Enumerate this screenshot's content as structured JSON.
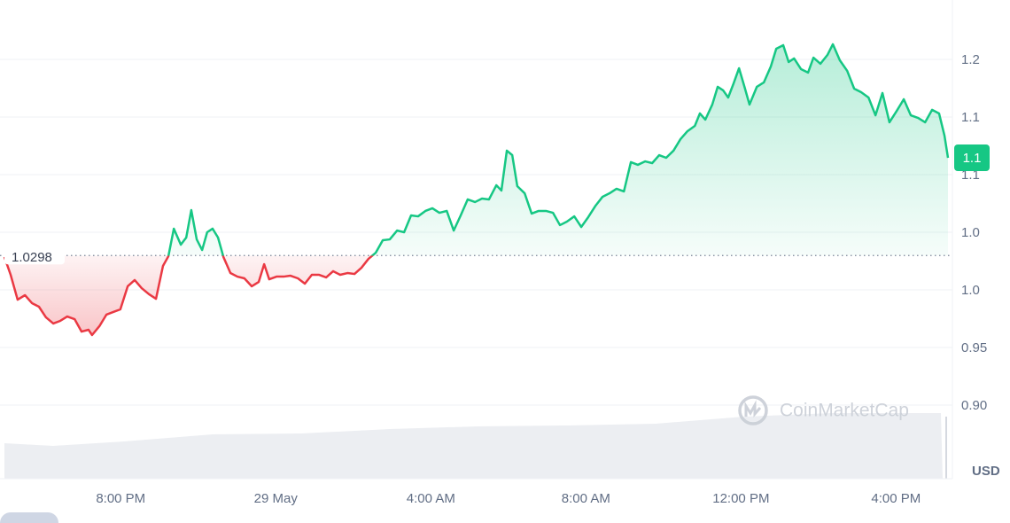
{
  "chart_data": {
    "type": "line",
    "x": [
      17.0,
      17.16,
      17.34,
      17.53,
      17.71,
      17.89,
      18.07,
      18.26,
      18.44,
      18.62,
      18.81,
      18.99,
      19.17,
      19.26,
      19.45,
      19.63,
      19.81,
      19.99,
      20.18,
      20.36,
      20.54,
      20.73,
      20.91,
      21.09,
      21.23,
      21.37,
      21.55,
      21.69,
      21.82,
      21.96,
      22.1,
      22.23,
      22.37,
      22.51,
      22.65,
      22.83,
      23.01,
      23.19,
      23.38,
      23.56,
      23.7,
      23.83,
      24.02,
      24.2,
      24.38,
      24.57,
      24.75,
      24.93,
      25.11,
      25.3,
      25.48,
      25.66,
      25.85,
      26.03,
      26.21,
      26.39,
      26.58,
      26.76,
      26.94,
      27.13,
      27.31,
      27.49,
      27.67,
      27.86,
      28.04,
      28.22,
      28.41,
      28.59,
      28.77,
      28.95,
      29.14,
      29.32,
      29.5,
      29.69,
      29.82,
      29.96,
      30.1,
      30.23,
      30.42,
      30.6,
      30.78,
      30.97,
      31.15,
      31.33,
      31.51,
      31.7,
      31.88,
      32.06,
      32.25,
      32.43,
      32.61,
      32.79,
      32.98,
      33.16,
      33.34,
      33.53,
      33.71,
      33.89,
      34.07,
      34.26,
      34.44,
      34.62,
      34.81,
      34.94,
      35.08,
      35.26,
      35.4,
      35.54,
      35.67,
      35.81,
      35.95,
      36.09,
      36.22,
      36.41,
      36.59,
      36.77,
      36.91,
      37.09,
      37.23,
      37.37,
      37.55,
      37.73,
      37.87,
      38.05,
      38.23,
      38.37,
      38.55,
      38.74,
      38.92,
      39.1,
      39.29,
      39.47,
      39.65,
      39.83,
      40.02,
      40.2,
      40.38,
      40.57,
      40.75,
      40.93,
      41.11,
      41.25,
      41.34
    ],
    "values": [
      1.0285,
      1.0131,
      0.9915,
      0.9954,
      0.9885,
      0.9854,
      0.9762,
      0.9708,
      0.9731,
      0.9769,
      0.9746,
      0.9638,
      0.9654,
      0.9608,
      0.9685,
      0.9785,
      0.9808,
      0.9831,
      1.0031,
      1.0085,
      1.0015,
      0.9962,
      0.9923,
      1.0208,
      1.0292,
      1.0531,
      1.0392,
      1.0454,
      1.0692,
      1.0438,
      1.0346,
      1.05,
      1.0531,
      1.0454,
      1.0285,
      1.0146,
      1.0115,
      1.01,
      1.0031,
      1.0069,
      1.0223,
      1.0092,
      1.0115,
      1.0115,
      1.0123,
      1.01,
      1.0054,
      1.0131,
      1.0131,
      1.0108,
      1.0162,
      1.0131,
      1.0146,
      1.0138,
      1.0192,
      1.0269,
      1.0323,
      1.0431,
      1.0438,
      1.0515,
      1.05,
      1.0646,
      1.0638,
      1.0685,
      1.0708,
      1.0669,
      1.0685,
      1.0515,
      1.0646,
      1.0785,
      1.0762,
      1.0792,
      1.0785,
      1.0908,
      1.0862,
      1.1208,
      1.1169,
      1.09,
      1.0838,
      1.0662,
      1.0685,
      1.0685,
      1.0669,
      1.0562,
      1.0592,
      1.0638,
      1.0546,
      1.0631,
      1.0731,
      1.0808,
      1.0838,
      1.0877,
      1.0854,
      1.1108,
      1.1085,
      1.1115,
      1.11,
      1.1169,
      1.1146,
      1.1208,
      1.1308,
      1.1377,
      1.1423,
      1.1531,
      1.1477,
      1.1608,
      1.1762,
      1.1731,
      1.1669,
      1.1792,
      1.1923,
      1.1762,
      1.1608,
      1.1762,
      1.18,
      1.1938,
      1.2092,
      1.2123,
      1.1977,
      1.2008,
      1.1915,
      1.1885,
      1.2015,
      1.1962,
      1.2038,
      1.2131,
      1.1992,
      1.19,
      1.1746,
      1.1715,
      1.1669,
      1.1515,
      1.1708,
      1.1454,
      1.1554,
      1.1654,
      1.1515,
      1.1492,
      1.1454,
      1.1562,
      1.1531,
      1.1338,
      1.1146
    ],
    "baseline": 1.0298,
    "current_price": {
      "value": 1.1146,
      "label": "1.1"
    },
    "up_color": "#16c784",
    "down_color": "#ea3943",
    "xlim": [
      17,
      41.34
    ],
    "xticks": [
      {
        "value": 20,
        "label": "8:00 PM"
      },
      {
        "value": 24,
        "label": "29 May"
      },
      {
        "value": 28,
        "label": "4:00 AM"
      },
      {
        "value": 32,
        "label": "8:00 AM"
      },
      {
        "value": 36,
        "label": "12:00 PM"
      },
      {
        "value": 40,
        "label": "4:00 PM"
      }
    ],
    "ylim": [
      0.8362,
      1.2515
    ],
    "yticks": [
      1.2,
      {
        "value": 1.15,
        "label": "1.1"
      },
      1.1,
      {
        "value": 1.05,
        "label": "1.0"
      },
      {
        "value": 1,
        "label": "1.0"
      },
      0.95,
      {
        "value": 0.9,
        "label": "0.90"
      }
    ],
    "y_unit": "USD",
    "watermark": "CoinMarketCap",
    "grid": true
  }
}
